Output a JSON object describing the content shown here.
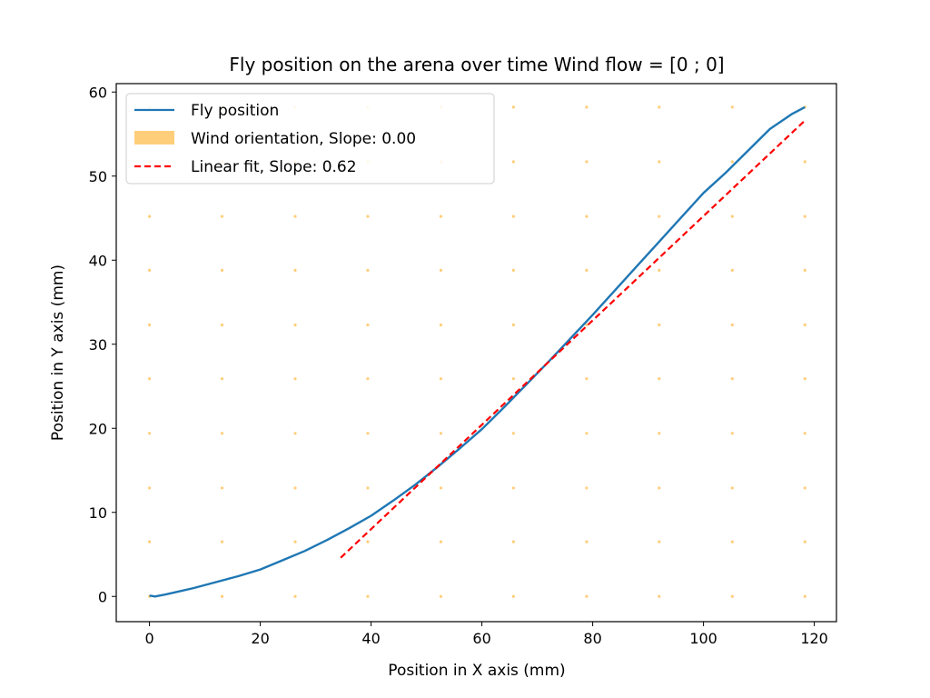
{
  "chart_data": {
    "type": "line",
    "title": "Fly position on the arena over time Wind flow = [0 ; 0]",
    "xlabel": "Position in X axis (mm)",
    "ylabel": "Position in Y axis (mm)",
    "xlim": [
      -6,
      124
    ],
    "ylim": [
      -3,
      61
    ],
    "xticks": [
      0,
      20,
      40,
      60,
      80,
      100,
      120
    ],
    "yticks": [
      0,
      10,
      20,
      30,
      40,
      50,
      60
    ],
    "grid": false,
    "legend_position": "top-left",
    "colors": {
      "fly": "#1f77b4",
      "wind": "#ffce7a",
      "fit": "#ff0000"
    },
    "series": [
      {
        "name": "Fly position",
        "style": "solid",
        "x": [
          0,
          0.5,
          1,
          3,
          5,
          8,
          12,
          16,
          20,
          24,
          28,
          32,
          36,
          40,
          44,
          48,
          52,
          56,
          60,
          64,
          68,
          72,
          76,
          80,
          84,
          88,
          92,
          96,
          100,
          104,
          108,
          112,
          116,
          118.3
        ],
        "y": [
          0.1,
          0.05,
          0,
          0.25,
          0.55,
          1.0,
          1.7,
          2.4,
          3.2,
          4.3,
          5.4,
          6.7,
          8.1,
          9.6,
          11.4,
          13.3,
          15.4,
          17.6,
          19.9,
          22.5,
          25.2,
          27.9,
          30.7,
          33.5,
          36.4,
          39.3,
          42.2,
          45.1,
          48.0,
          50.4,
          53.0,
          55.6,
          57.4,
          58.2
        ]
      },
      {
        "name": "Linear fit, Slope: 0.62",
        "style": "dashed",
        "x": [
          34.5,
          118.3
        ],
        "y": [
          4.6,
          56.6
        ]
      }
    ],
    "wind_field": {
      "name": "Wind orientation, Slope: 0.00",
      "x": [
        0,
        13.1,
        26.3,
        39.4,
        52.6,
        65.7,
        78.9,
        92.0,
        105.2,
        118.3
      ],
      "y": [
        0,
        6.5,
        12.9,
        19.4,
        25.9,
        32.3,
        38.8,
        45.2,
        51.7,
        58.2
      ]
    }
  }
}
